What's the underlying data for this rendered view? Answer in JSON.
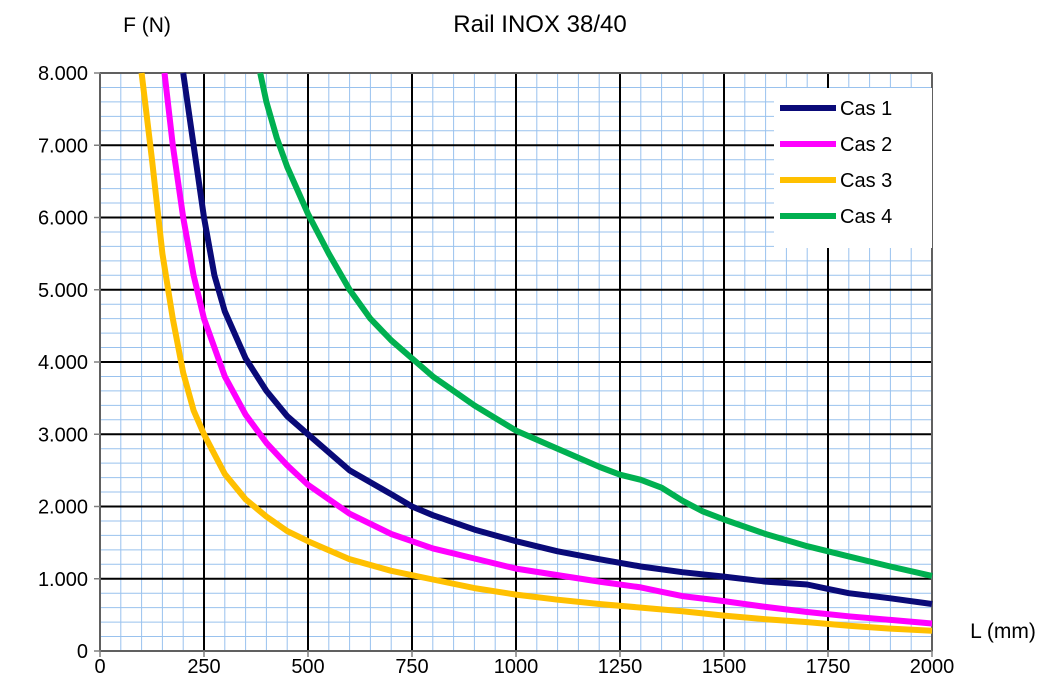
{
  "chart_data": {
    "type": "line",
    "title": "Rail INOX 38/40",
    "ylabel": "F (N)",
    "xlabel": "L (mm)",
    "xlim": [
      0,
      2000
    ],
    "ylim": [
      0,
      8000
    ],
    "x_major_step": 250,
    "x_minor_step": 50,
    "y_major_step": 1000,
    "y_minor_step": 200,
    "x_tick_labels": [
      "0",
      "250",
      "500",
      "750",
      "1000",
      "1250",
      "1500",
      "1750",
      "2000"
    ],
    "y_tick_labels": [
      "0",
      "1.000",
      "2.000",
      "3.000",
      "4.000",
      "5.000",
      "6.000",
      "7.000",
      "8.000"
    ],
    "grid": true,
    "legend_position": "top-right",
    "series": [
      {
        "name": "Cas 1",
        "color": "#0a0a78",
        "points": [
          [
            200,
            8000
          ],
          [
            225,
            7000
          ],
          [
            250,
            6000
          ],
          [
            275,
            5200
          ],
          [
            300,
            4700
          ],
          [
            350,
            4050
          ],
          [
            400,
            3600
          ],
          [
            450,
            3250
          ],
          [
            500,
            3000
          ],
          [
            600,
            2500
          ],
          [
            700,
            2170
          ],
          [
            750,
            2000
          ],
          [
            800,
            1880
          ],
          [
            900,
            1680
          ],
          [
            1000,
            1520
          ],
          [
            1100,
            1380
          ],
          [
            1200,
            1270
          ],
          [
            1300,
            1170
          ],
          [
            1400,
            1090
          ],
          [
            1500,
            1030
          ],
          [
            1600,
            960
          ],
          [
            1700,
            920
          ],
          [
            1750,
            860
          ],
          [
            1800,
            800
          ],
          [
            1900,
            730
          ],
          [
            2000,
            650
          ]
        ]
      },
      {
        "name": "Cas 2",
        "color": "#ff00ff",
        "points": [
          [
            155,
            8000
          ],
          [
            175,
            7000
          ],
          [
            200,
            6000
          ],
          [
            225,
            5200
          ],
          [
            250,
            4600
          ],
          [
            300,
            3800
          ],
          [
            350,
            3270
          ],
          [
            400,
            2880
          ],
          [
            450,
            2570
          ],
          [
            500,
            2300
          ],
          [
            600,
            1900
          ],
          [
            700,
            1620
          ],
          [
            750,
            1520
          ],
          [
            800,
            1420
          ],
          [
            900,
            1280
          ],
          [
            1000,
            1140
          ],
          [
            1100,
            1050
          ],
          [
            1200,
            960
          ],
          [
            1300,
            880
          ],
          [
            1350,
            820
          ],
          [
            1400,
            760
          ],
          [
            1500,
            690
          ],
          [
            1600,
            610
          ],
          [
            1700,
            540
          ],
          [
            1800,
            480
          ],
          [
            1900,
            430
          ],
          [
            2000,
            380
          ]
        ]
      },
      {
        "name": "Cas 3",
        "color": "#ffc000",
        "points": [
          [
            100,
            8000
          ],
          [
            125,
            6800
          ],
          [
            150,
            5500
          ],
          [
            175,
            4600
          ],
          [
            200,
            3850
          ],
          [
            225,
            3330
          ],
          [
            250,
            3000
          ],
          [
            300,
            2450
          ],
          [
            350,
            2100
          ],
          [
            400,
            1860
          ],
          [
            450,
            1660
          ],
          [
            500,
            1520
          ],
          [
            600,
            1270
          ],
          [
            700,
            1110
          ],
          [
            800,
            990
          ],
          [
            900,
            870
          ],
          [
            1000,
            780
          ],
          [
            1100,
            710
          ],
          [
            1200,
            650
          ],
          [
            1300,
            600
          ],
          [
            1400,
            550
          ],
          [
            1500,
            490
          ],
          [
            1600,
            440
          ],
          [
            1700,
            400
          ],
          [
            1800,
            350
          ],
          [
            1900,
            310
          ],
          [
            2000,
            280
          ]
        ]
      },
      {
        "name": "Cas 4",
        "color": "#00b050",
        "points": [
          [
            385,
            8000
          ],
          [
            400,
            7600
          ],
          [
            425,
            7100
          ],
          [
            450,
            6700
          ],
          [
            500,
            6050
          ],
          [
            550,
            5500
          ],
          [
            600,
            5000
          ],
          [
            650,
            4600
          ],
          [
            700,
            4300
          ],
          [
            750,
            4050
          ],
          [
            800,
            3800
          ],
          [
            900,
            3400
          ],
          [
            1000,
            3050
          ],
          [
            1100,
            2800
          ],
          [
            1200,
            2550
          ],
          [
            1250,
            2440
          ],
          [
            1300,
            2370
          ],
          [
            1350,
            2260
          ],
          [
            1400,
            2080
          ],
          [
            1450,
            1930
          ],
          [
            1500,
            1820
          ],
          [
            1600,
            1620
          ],
          [
            1700,
            1450
          ],
          [
            1800,
            1310
          ],
          [
            1900,
            1170
          ],
          [
            2000,
            1040
          ]
        ]
      }
    ]
  }
}
